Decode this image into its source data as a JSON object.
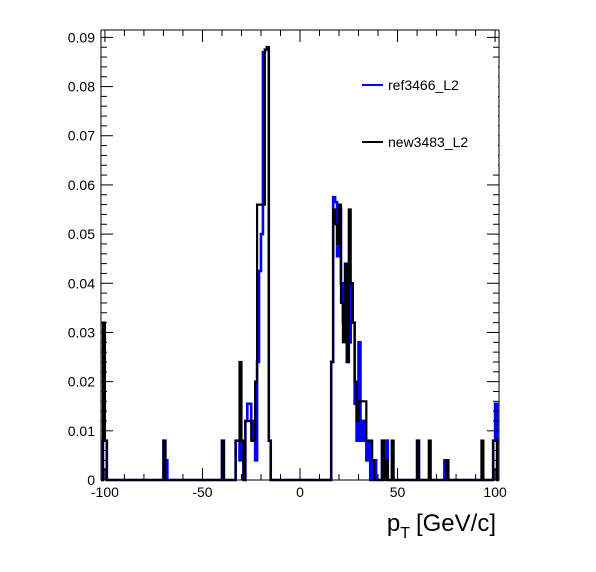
{
  "chart_data": {
    "type": "histogram",
    "title": "",
    "xlabel": "p",
    "xlabel_sub": "T",
    "xlabel_unit": "[GeV/c]",
    "ylabel": "",
    "xlim": [
      -102,
      102
    ],
    "ylim": [
      0,
      0.0915
    ],
    "x_ticks": [
      -100,
      -50,
      0,
      50,
      100
    ],
    "x_tick_labels": [
      "-100",
      "-50",
      "0",
      "50",
      "100"
    ],
    "y_ticks": [
      0,
      0.01,
      0.02,
      0.03,
      0.04,
      0.05,
      0.06,
      0.07,
      0.08,
      0.09
    ],
    "y_tick_labels": [
      "0",
      "0.01",
      "0.02",
      "0.03",
      "0.04",
      "0.05",
      "0.06",
      "0.07",
      "0.08",
      "0.09"
    ],
    "grid": false,
    "legend_position": "top-right",
    "bin_width": 1,
    "series": [
      {
        "name": "ref3466_L2",
        "color": "#0000ff",
        "bins": [
          [
            -101,
            0.008
          ],
          [
            -100,
            0.008
          ],
          [
            -70,
            0.008
          ],
          [
            -69,
            0.004
          ],
          [
            -40,
            0.008
          ],
          [
            -33,
            0.008
          ],
          [
            -32,
            0.008
          ],
          [
            -31,
            0.004
          ],
          [
            -30,
            0.008
          ],
          [
            -28,
            0.012
          ],
          [
            -27,
            0.0155
          ],
          [
            -26,
            0.0155
          ],
          [
            -25,
            0.012
          ],
          [
            -24,
            0.008
          ],
          [
            -23,
            0.004
          ],
          [
            -22,
            0.024
          ],
          [
            -21,
            0.0425
          ],
          [
            -20,
            0.05
          ],
          [
            -19,
            0.087
          ],
          [
            -18,
            0.0875
          ],
          [
            -17,
            0.088
          ],
          [
            -16,
            0.008
          ],
          [
            16,
            0.024
          ],
          [
            17,
            0.0575
          ],
          [
            18,
            0.0565
          ],
          [
            19,
            0.0455
          ],
          [
            20,
            0.055
          ],
          [
            21,
            0.04
          ],
          [
            22,
            0.032
          ],
          [
            23,
            0.0295
          ],
          [
            24,
            0.024
          ],
          [
            25,
            0.028
          ],
          [
            26,
            0.04
          ],
          [
            27,
            0.032
          ],
          [
            28,
            0.0155
          ],
          [
            29,
            0.008
          ],
          [
            30,
            0.028
          ],
          [
            31,
            0.008
          ],
          [
            32,
            0.012
          ],
          [
            33,
            0.008
          ],
          [
            34,
            0.004
          ],
          [
            35,
            0.008
          ],
          [
            37,
            0.004
          ],
          [
            38,
            0.004
          ],
          [
            42,
            0.008
          ],
          [
            43,
            0.004
          ],
          [
            44,
            0.008
          ],
          [
            60,
            0.008
          ],
          [
            74,
            0.004
          ],
          [
            75,
            0.004
          ],
          [
            99,
            0.008
          ],
          [
            100,
            0.0155
          ]
        ]
      },
      {
        "name": "new3483_L2",
        "color": "#000000",
        "bins": [
          [
            -101,
            0.032
          ],
          [
            -100,
            0.008
          ],
          [
            -70,
            0.008
          ],
          [
            -40,
            0.008
          ],
          [
            -33,
            0.008
          ],
          [
            -32,
            0.008
          ],
          [
            -31,
            0.024
          ],
          [
            -30,
            0.008
          ],
          [
            -28,
            0.012
          ],
          [
            -27,
            0.012
          ],
          [
            -26,
            0.012
          ],
          [
            -25,
            0.008
          ],
          [
            -24,
            0.008
          ],
          [
            -23,
            0.02
          ],
          [
            -22,
            0.056
          ],
          [
            -21,
            0.056
          ],
          [
            -20,
            0.056
          ],
          [
            -19,
            0.056
          ],
          [
            -18,
            0.0875
          ],
          [
            -17,
            0.088
          ],
          [
            -16,
            0.008
          ],
          [
            16,
            0.024
          ],
          [
            17,
            0.055
          ],
          [
            18,
            0.052
          ],
          [
            19,
            0.048
          ],
          [
            20,
            0.056
          ],
          [
            21,
            0.036
          ],
          [
            22,
            0.028
          ],
          [
            23,
            0.044
          ],
          [
            24,
            0.024
          ],
          [
            25,
            0.055
          ],
          [
            26,
            0.04
          ],
          [
            27,
            0.032
          ],
          [
            28,
            0.02
          ],
          [
            29,
            0.012
          ],
          [
            30,
            0.016
          ],
          [
            31,
            0.016
          ],
          [
            32,
            0.016
          ],
          [
            33,
            0.016
          ],
          [
            34,
            0.008
          ],
          [
            35,
            0.008
          ],
          [
            36,
            0.008
          ],
          [
            37,
            0.004
          ],
          [
            42,
            0.008
          ],
          [
            44,
            0.004
          ],
          [
            47,
            0.008
          ],
          [
            60,
            0.008
          ],
          [
            66,
            0.008
          ],
          [
            75,
            0.004
          ],
          [
            93,
            0.008
          ],
          [
            99,
            0.008
          ],
          [
            100,
            0.008
          ]
        ]
      }
    ]
  }
}
